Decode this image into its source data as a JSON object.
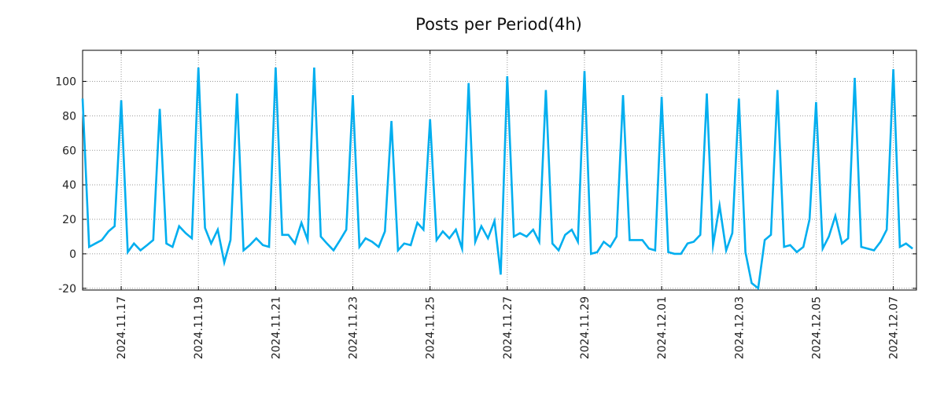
{
  "chart_data": {
    "type": "line",
    "title": "Posts per Period(4h)",
    "xlabel": "",
    "ylabel": "",
    "grid": true,
    "x_tick_labels": [
      "2024.11.17",
      "2024.11.19",
      "2024.11.21",
      "2024.11.23",
      "2024.11.25",
      "2024.11.27",
      "2024.11.29",
      "2024.12.01",
      "2024.12.03",
      "2024.12.05",
      "2024.12.07"
    ],
    "y_ticks": [
      -20,
      0,
      20,
      40,
      60,
      80,
      100
    ],
    "ylim": [
      -21,
      118
    ],
    "xlim_days": [
      0,
      21.6
    ],
    "x_tick_days": [
      1,
      3,
      5,
      7,
      9,
      11,
      13,
      15,
      17,
      19,
      21
    ],
    "series": [
      {
        "name": "posts",
        "color": "#00aeef",
        "points": [
          [
            0.0,
            90
          ],
          [
            0.17,
            4
          ],
          [
            0.33,
            6
          ],
          [
            0.5,
            8
          ],
          [
            0.67,
            13
          ],
          [
            0.83,
            16
          ],
          [
            1.0,
            89
          ],
          [
            1.17,
            1
          ],
          [
            1.33,
            6
          ],
          [
            1.5,
            2
          ],
          [
            1.67,
            5
          ],
          [
            1.83,
            8
          ],
          [
            2.0,
            84
          ],
          [
            2.17,
            6
          ],
          [
            2.33,
            4
          ],
          [
            2.5,
            16
          ],
          [
            2.67,
            12
          ],
          [
            2.83,
            9
          ],
          [
            3.0,
            108
          ],
          [
            3.17,
            15
          ],
          [
            3.33,
            6
          ],
          [
            3.5,
            14
          ],
          [
            3.67,
            -5
          ],
          [
            3.83,
            8
          ],
          [
            4.0,
            93
          ],
          [
            4.17,
            2
          ],
          [
            4.33,
            5
          ],
          [
            4.5,
            9
          ],
          [
            4.67,
            5
          ],
          [
            4.83,
            4
          ],
          [
            5.0,
            108
          ],
          [
            5.17,
            11
          ],
          [
            5.33,
            11
          ],
          [
            5.5,
            6
          ],
          [
            5.67,
            18
          ],
          [
            5.83,
            8
          ],
          [
            6.0,
            108
          ],
          [
            6.17,
            10
          ],
          [
            6.33,
            6
          ],
          [
            6.5,
            2
          ],
          [
            6.67,
            8
          ],
          [
            6.83,
            14
          ],
          [
            7.0,
            92
          ],
          [
            7.17,
            4
          ],
          [
            7.33,
            9
          ],
          [
            7.5,
            7
          ],
          [
            7.67,
            4
          ],
          [
            7.83,
            13
          ],
          [
            8.0,
            77
          ],
          [
            8.17,
            2
          ],
          [
            8.33,
            6
          ],
          [
            8.5,
            5
          ],
          [
            8.67,
            18
          ],
          [
            8.83,
            14
          ],
          [
            9.0,
            78
          ],
          [
            9.17,
            8
          ],
          [
            9.33,
            13
          ],
          [
            9.5,
            9
          ],
          [
            9.67,
            14
          ],
          [
            9.83,
            3
          ],
          [
            10.0,
            99
          ],
          [
            10.17,
            7
          ],
          [
            10.33,
            16
          ],
          [
            10.5,
            9
          ],
          [
            10.67,
            19
          ],
          [
            10.83,
            -12
          ],
          [
            11.0,
            103
          ],
          [
            11.17,
            10
          ],
          [
            11.33,
            12
          ],
          [
            11.5,
            10
          ],
          [
            11.67,
            14
          ],
          [
            11.83,
            7
          ],
          [
            12.0,
            95
          ],
          [
            12.17,
            6
          ],
          [
            12.33,
            2
          ],
          [
            12.5,
            11
          ],
          [
            12.67,
            14
          ],
          [
            12.83,
            7
          ],
          [
            13.0,
            106
          ],
          [
            13.17,
            0
          ],
          [
            13.33,
            1
          ],
          [
            13.5,
            7
          ],
          [
            13.67,
            4
          ],
          [
            13.83,
            10
          ],
          [
            14.0,
            92
          ],
          [
            14.17,
            8
          ],
          [
            14.33,
            8
          ],
          [
            14.5,
            8
          ],
          [
            14.67,
            3
          ],
          [
            14.83,
            2
          ],
          [
            15.0,
            91
          ],
          [
            15.17,
            1
          ],
          [
            15.33,
            0
          ],
          [
            15.5,
            0
          ],
          [
            15.67,
            6
          ],
          [
            15.83,
            7
          ],
          [
            16.0,
            11
          ],
          [
            16.17,
            93
          ],
          [
            16.33,
            5
          ],
          [
            16.5,
            28
          ],
          [
            16.67,
            2
          ],
          [
            16.83,
            12
          ],
          [
            17.0,
            90
          ],
          [
            17.17,
            1
          ],
          [
            17.33,
            -17
          ],
          [
            17.5,
            -20
          ],
          [
            17.67,
            8
          ],
          [
            17.83,
            11
          ],
          [
            18.0,
            95
          ],
          [
            18.17,
            4
          ],
          [
            18.33,
            5
          ],
          [
            18.5,
            1
          ],
          [
            18.67,
            4
          ],
          [
            18.83,
            20
          ],
          [
            19.0,
            88
          ],
          [
            19.17,
            3
          ],
          [
            19.33,
            10
          ],
          [
            19.5,
            22
          ],
          [
            19.67,
            6
          ],
          [
            19.83,
            9
          ],
          [
            20.0,
            102
          ],
          [
            20.17,
            4
          ],
          [
            20.33,
            3
          ],
          [
            20.5,
            2
          ],
          [
            20.67,
            7
          ],
          [
            20.83,
            14
          ],
          [
            21.0,
            107
          ],
          [
            21.17,
            4
          ],
          [
            21.33,
            6
          ],
          [
            21.5,
            3
          ]
        ]
      }
    ]
  }
}
